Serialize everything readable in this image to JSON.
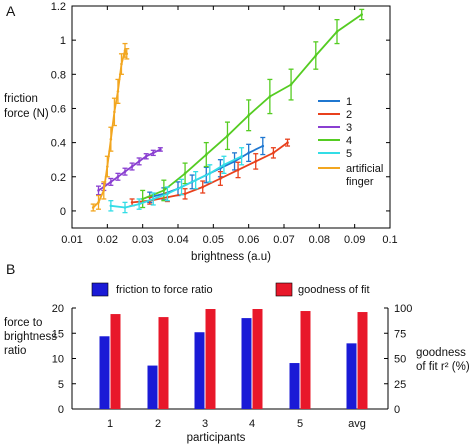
{
  "panel_labels": [
    "A",
    "B"
  ],
  "chart_data": [
    {
      "type": "line",
      "xlabel": "brightness (a.u)",
      "ylabel": [
        "friction",
        "force (N)"
      ],
      "xlim": [
        0.01,
        0.1
      ],
      "ylim": [
        -0.1,
        1.2
      ],
      "xticks": [
        0.01,
        0.02,
        0.03,
        0.04,
        0.05,
        0.06,
        0.07,
        0.08,
        0.09,
        0.1
      ],
      "xtick_labels": [
        "0.01",
        "0.02",
        "0.03",
        "0.04",
        "0.05",
        "0.06",
        "0.07",
        "0.08",
        "0.09",
        "0.1"
      ],
      "yticks": [
        0,
        0.2,
        0.4,
        0.6,
        0.8,
        1,
        1.2
      ],
      "ytick_labels": [
        "0",
        "0.2",
        "0.4",
        "0.6",
        "0.8",
        "1",
        "1.2"
      ],
      "grid": false,
      "legend_placement": "right",
      "series": [
        {
          "name": "1",
          "color": "#1f77d0",
          "x": [
            0.032,
            0.036,
            0.04,
            0.044,
            0.048,
            0.052,
            0.056,
            0.06,
            0.064
          ],
          "y": [
            0.08,
            0.1,
            0.13,
            0.17,
            0.21,
            0.25,
            0.29,
            0.34,
            0.38
          ],
          "err": [
            0.03,
            0.035,
            0.04,
            0.04,
            0.045,
            0.05,
            0.05,
            0.05,
            0.05
          ]
        },
        {
          "name": "2",
          "color": "#e8401c",
          "x": [
            0.027,
            0.032,
            0.037,
            0.042,
            0.047,
            0.052,
            0.057,
            0.062,
            0.067,
            0.071
          ],
          "y": [
            0.05,
            0.06,
            0.08,
            0.1,
            0.14,
            0.19,
            0.24,
            0.29,
            0.34,
            0.4
          ],
          "err": [
            0.02,
            0.02,
            0.025,
            0.03,
            0.035,
            0.04,
            0.045,
            0.045,
            0.03,
            0.02
          ]
        },
        {
          "name": "3",
          "color": "#8a3fd1",
          "x": [
            0.0175,
            0.019,
            0.021,
            0.023,
            0.025,
            0.027,
            0.029,
            0.031,
            0.033,
            0.035
          ],
          "y": [
            0.12,
            0.14,
            0.17,
            0.2,
            0.23,
            0.26,
            0.29,
            0.32,
            0.34,
            0.36
          ],
          "err": [
            0.025,
            0.02,
            0.02,
            0.02,
            0.02,
            0.02,
            0.02,
            0.015,
            0.015,
            0.01
          ]
        },
        {
          "name": "4",
          "color": "#55cc22",
          "x": [
            0.03,
            0.036,
            0.042,
            0.048,
            0.054,
            0.06,
            0.066,
            0.072,
            0.079,
            0.085,
            0.092
          ],
          "y": [
            0.07,
            0.12,
            0.22,
            0.33,
            0.44,
            0.56,
            0.67,
            0.74,
            0.91,
            1.05,
            1.15
          ],
          "err": [
            0.05,
            0.06,
            0.06,
            0.07,
            0.08,
            0.09,
            0.1,
            0.09,
            0.08,
            0.07,
            0.03
          ]
        },
        {
          "name": "5",
          "color": "#33dde6",
          "x": [
            0.021,
            0.025,
            0.029,
            0.033,
            0.037,
            0.041,
            0.045,
            0.049,
            0.053,
            0.058
          ],
          "y": [
            0.03,
            0.02,
            0.04,
            0.07,
            0.1,
            0.14,
            0.18,
            0.22,
            0.27,
            0.32
          ],
          "err": [
            0.03,
            0.03,
            0.03,
            0.035,
            0.04,
            0.045,
            0.05,
            0.05,
            0.05,
            0.05
          ]
        },
        {
          "name": "artificial finger",
          "color": "#f2a620",
          "x": [
            0.016,
            0.0175,
            0.019,
            0.02,
            0.021,
            0.022,
            0.023,
            0.024,
            0.025,
            0.0255
          ],
          "y": [
            0.02,
            0.05,
            0.12,
            0.26,
            0.42,
            0.58,
            0.7,
            0.86,
            0.94,
            0.92
          ],
          "err": [
            0.02,
            0.04,
            0.05,
            0.06,
            0.07,
            0.08,
            0.07,
            0.06,
            0.04,
            0.03
          ]
        }
      ]
    },
    {
      "type": "bar",
      "xlabel": "participants",
      "ylabel_left": [
        "force to",
        "brightness",
        "ratio"
      ],
      "ylabel_right": [
        "goodness",
        "of fit r² (%)"
      ],
      "categories": [
        "1",
        "2",
        "3",
        "4",
        "5",
        "avg"
      ],
      "ylim_left": [
        0,
        20
      ],
      "ylim_right": [
        0,
        100
      ],
      "yticks_left": [
        0,
        5,
        10,
        15,
        20
      ],
      "yticks_right": [
        0,
        25,
        50,
        75,
        100
      ],
      "ytick_labels_left": [
        "0",
        "5",
        "10",
        "15",
        "20"
      ],
      "ytick_labels_right": [
        "0",
        "25",
        "50",
        "75",
        "100"
      ],
      "legend_placement": "top",
      "series": [
        {
          "name": "friction to force ratio",
          "axis": "left",
          "color": "#1a1ad6",
          "values": [
            14.4,
            8.6,
            15.2,
            18.0,
            9.1,
            13.0
          ]
        },
        {
          "name": "goodness of fit",
          "axis": "right",
          "color": "#e8182a",
          "values": [
            94,
            91,
            99,
            99,
            97,
            96
          ]
        }
      ]
    }
  ]
}
